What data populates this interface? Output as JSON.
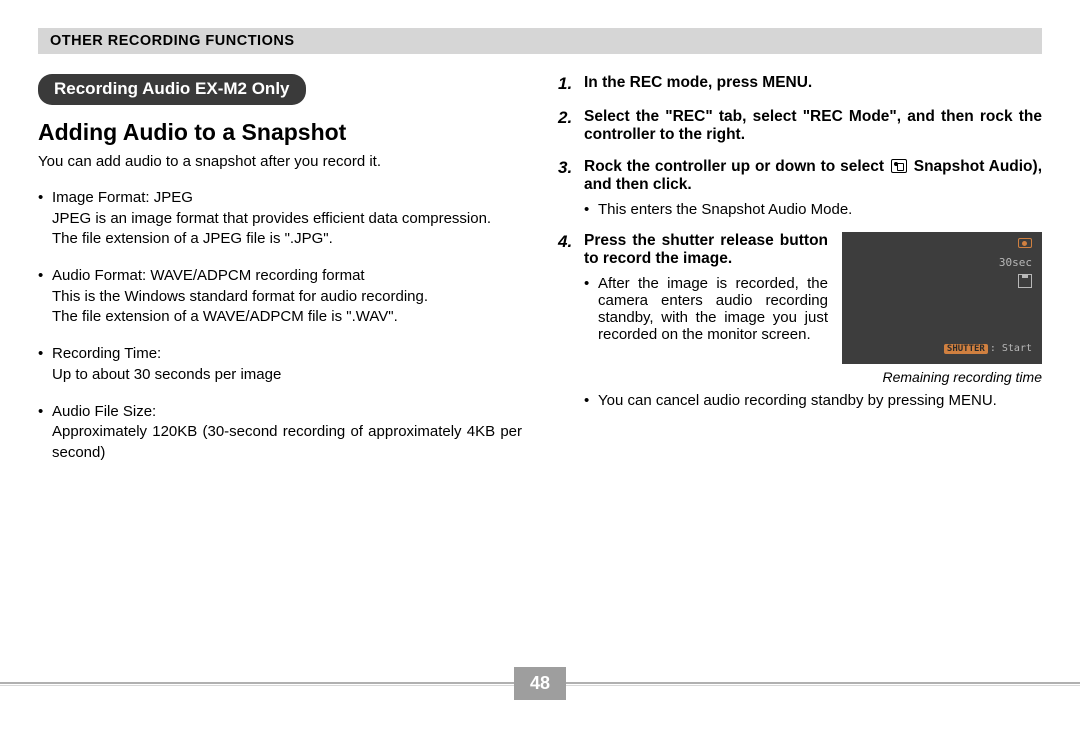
{
  "section_header": "OTHER RECORDING FUNCTIONS",
  "pill_title": "Recording Audio EX-M2 Only",
  "main_heading": "Adding Audio to a Snapshot",
  "intro": "You can add audio to a snapshot after you record it.",
  "specs": [
    {
      "title": "Image Format: JPEG",
      "body1": "JPEG is an image format that provides efficient data compression.",
      "body2": "The file extension of a JPEG file is \".JPG\"."
    },
    {
      "title": "Audio Format: WAVE/ADPCM recording format",
      "body1": "This is the Windows standard format for audio recording.",
      "body2": "The file extension of a WAVE/ADPCM file is \".WAV\"."
    },
    {
      "title": "Recording Time:",
      "body1": "Up to about 30 seconds per image",
      "body2": ""
    },
    {
      "title": "Audio File Size:",
      "body1": "Approximately 120KB (30-second recording of approximately 4KB per second)",
      "body2": ""
    }
  ],
  "steps": {
    "s1": "In the REC mode, press MENU.",
    "s2": "Select the \"REC\" tab, select \"REC Mode\", and then rock the controller to the right.",
    "s3_a": "Rock the controller up or down to select ",
    "s3_b": " Snapshot Audio), and then click.",
    "s3_sub": "This enters the Snapshot Audio Mode.",
    "s4": "Press the shutter release button to record the image.",
    "s4_sub1": "After the image is recorded, the camera enters audio recording standby, with the image you just recorded on the monitor screen.",
    "s4_sub2": "You can cancel audio recording standby by pressing MENU."
  },
  "monitor": {
    "time": "30sec",
    "shutter_label": "SHUTTER",
    "shutter_text": ": Start",
    "caption": "Remaining recording time"
  },
  "page_number": "48"
}
